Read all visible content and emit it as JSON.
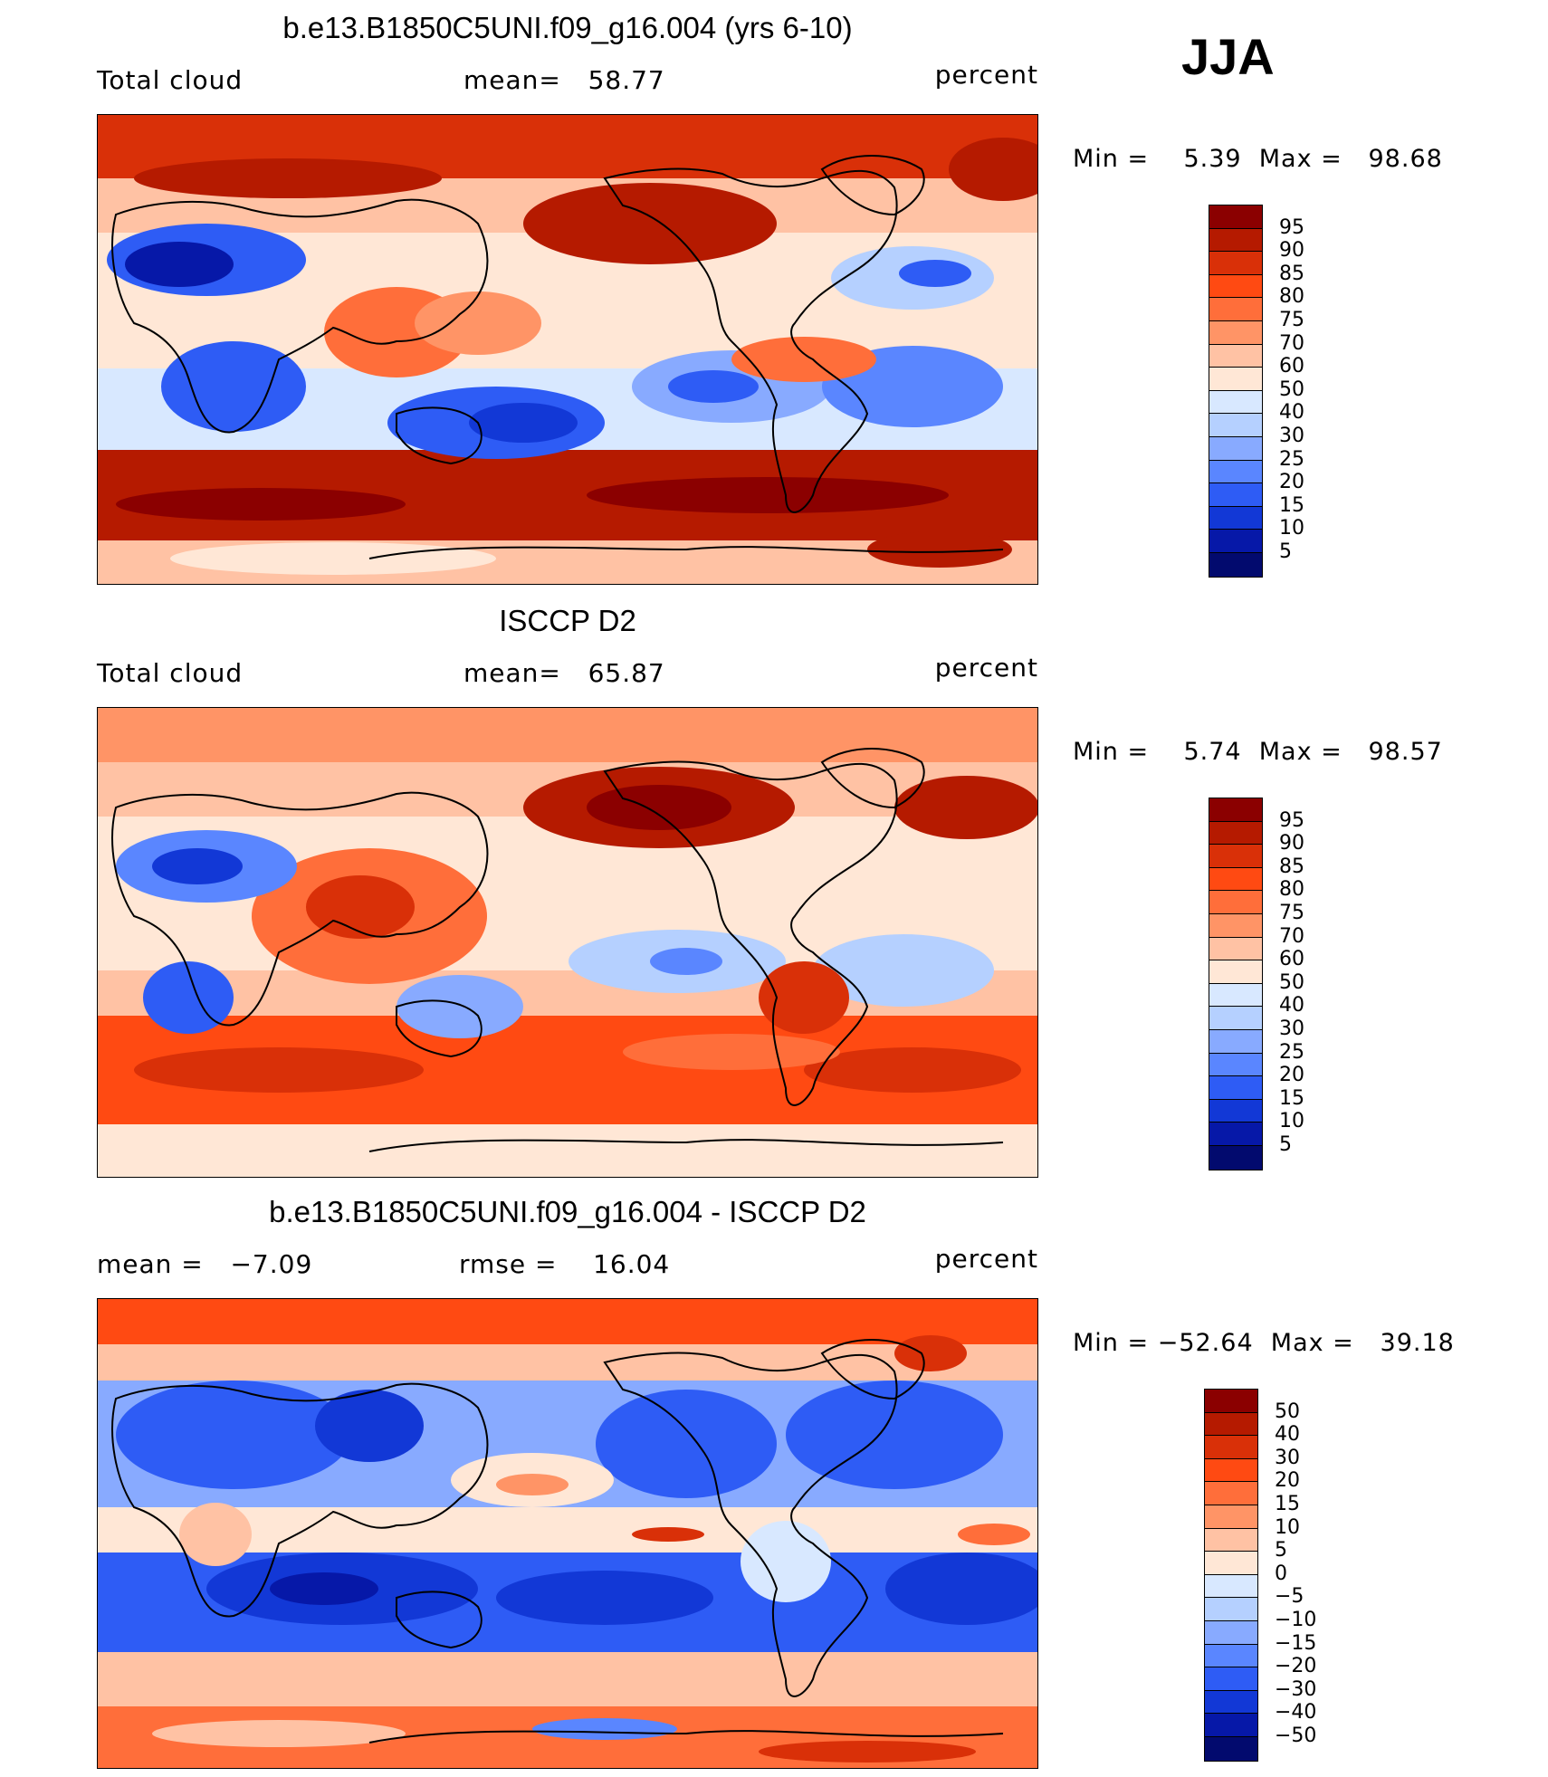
{
  "season": "JJA",
  "panels": [
    {
      "title": "b.e13.B1850C5UNI.f09_g16.004 (yrs 6-10)",
      "left_label": "Total cloud",
      "center_label": "mean=   58.77",
      "units": "percent",
      "minmax": "Min =    5.39  Max =   98.68",
      "colorbar_levels": [
        "95",
        "90",
        "85",
        "80",
        "75",
        "70",
        "60",
        "50",
        "40",
        "30",
        "25",
        "20",
        "15",
        "10",
        "5"
      ],
      "colorbar_colors": [
        "#8b0000",
        "#b51a00",
        "#d93008",
        "#ff4a12",
        "#ff6e3a",
        "#ff9466",
        "#ffc2a4",
        "#ffe7d6",
        "#d8e8ff",
        "#b5d0ff",
        "#88aaff",
        "#5a86ff",
        "#2e5cf5",
        "#1238d6",
        "#0618a8",
        "#020a6e"
      ]
    },
    {
      "title": "ISCCP D2",
      "left_label": "Total cloud",
      "center_label": "mean=   65.87",
      "units": "percent",
      "minmax": "Min =    5.74  Max =   98.57",
      "colorbar_levels": [
        "95",
        "90",
        "85",
        "80",
        "75",
        "70",
        "60",
        "50",
        "40",
        "30",
        "25",
        "20",
        "15",
        "10",
        "5"
      ],
      "colorbar_colors": [
        "#8b0000",
        "#b51a00",
        "#d93008",
        "#ff4a12",
        "#ff6e3a",
        "#ff9466",
        "#ffc2a4",
        "#ffe7d6",
        "#d8e8ff",
        "#b5d0ff",
        "#88aaff",
        "#5a86ff",
        "#2e5cf5",
        "#1238d6",
        "#0618a8",
        "#020a6e"
      ]
    },
    {
      "title": "b.e13.B1850C5UNI.f09_g16.004 - ISCCP D2",
      "left_label": "mean =   −7.09",
      "center_label": "rmse =    16.04",
      "units": "percent",
      "minmax": "Min = −52.64  Max =   39.18",
      "colorbar_levels": [
        "50",
        "40",
        "30",
        "20",
        "15",
        "10",
        "5",
        "0",
        "−5",
        "−10",
        "−15",
        "−20",
        "−30",
        "−40",
        "−50"
      ],
      "colorbar_colors": [
        "#8b0000",
        "#b51a00",
        "#d93008",
        "#ff4a12",
        "#ff6e3a",
        "#ff9466",
        "#ffc2a4",
        "#ffe7d6",
        "#d8e8ff",
        "#b5d0ff",
        "#88aaff",
        "#5a86ff",
        "#2e5cf5",
        "#1238d6",
        "#0618a8",
        "#020a6e"
      ]
    }
  ]
}
